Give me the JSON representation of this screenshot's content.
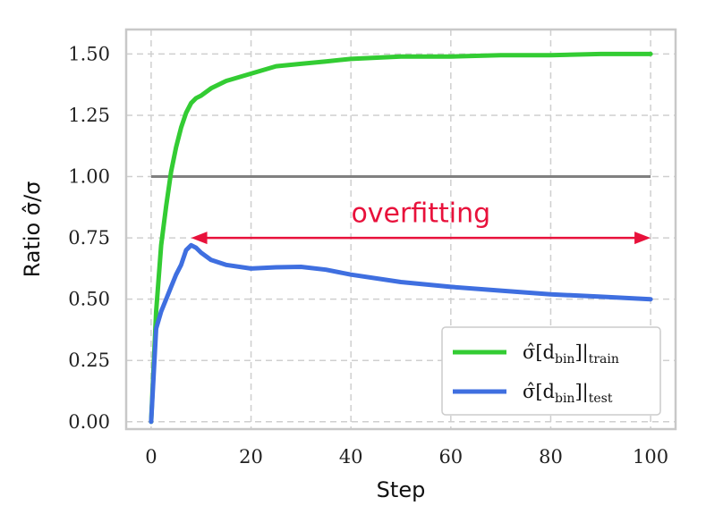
{
  "chart_data": {
    "type": "line",
    "xlabel": "Step",
    "ylabel": "Ratio σ̂/σ",
    "xlim": [
      -5,
      105
    ],
    "ylim": [
      -0.03,
      1.6
    ],
    "x_ticks": [
      0,
      20,
      40,
      60,
      80,
      100
    ],
    "x_tick_labels": [
      "0",
      "20",
      "40",
      "60",
      "80",
      "100"
    ],
    "y_ticks": [
      0.0,
      0.25,
      0.5,
      0.75,
      1.0,
      1.25,
      1.5
    ],
    "y_tick_labels": [
      "0.00",
      "0.25",
      "0.50",
      "0.75",
      "1.00",
      "1.25",
      "1.50"
    ],
    "grid": true,
    "legend_position": "lower-right",
    "series": [
      {
        "name": "σ̂[d_bin]|train",
        "label_main": "σ̂[d",
        "label_sub1": "bin",
        "label_mid": "]|",
        "label_sub2": "train",
        "color": "#33cc33",
        "x": [
          0,
          1,
          2,
          3,
          4,
          5,
          6,
          7,
          8,
          9,
          10,
          12,
          15,
          20,
          25,
          30,
          35,
          40,
          50,
          60,
          70,
          80,
          90,
          100
        ],
        "y": [
          0.0,
          0.45,
          0.72,
          0.88,
          1.02,
          1.12,
          1.2,
          1.26,
          1.3,
          1.32,
          1.33,
          1.36,
          1.39,
          1.42,
          1.45,
          1.46,
          1.47,
          1.48,
          1.49,
          1.49,
          1.495,
          1.495,
          1.5,
          1.5
        ]
      },
      {
        "name": "σ̂[d_bin]|test",
        "label_main": "σ̂[d",
        "label_sub1": "bin",
        "label_mid": "]|",
        "label_sub2": "test",
        "color": "#3f6fe0",
        "x": [
          0,
          1,
          2,
          3,
          4,
          5,
          6,
          7,
          8,
          9,
          10,
          12,
          15,
          20,
          25,
          30,
          35,
          40,
          50,
          60,
          70,
          80,
          90,
          100
        ],
        "y": [
          0.0,
          0.38,
          0.45,
          0.5,
          0.55,
          0.6,
          0.64,
          0.7,
          0.72,
          0.71,
          0.69,
          0.66,
          0.64,
          0.625,
          0.63,
          0.632,
          0.62,
          0.6,
          0.57,
          0.55,
          0.535,
          0.52,
          0.51,
          0.5
        ]
      }
    ],
    "reference_line": {
      "y": 1.0,
      "x": [
        0,
        100
      ],
      "color": "#808080"
    },
    "annotation": {
      "text": "overfitting",
      "color": "#e8113b",
      "arrow_x": [
        8,
        100
      ],
      "arrow_y": 0.75,
      "text_x": 54,
      "text_y": 0.85
    }
  }
}
